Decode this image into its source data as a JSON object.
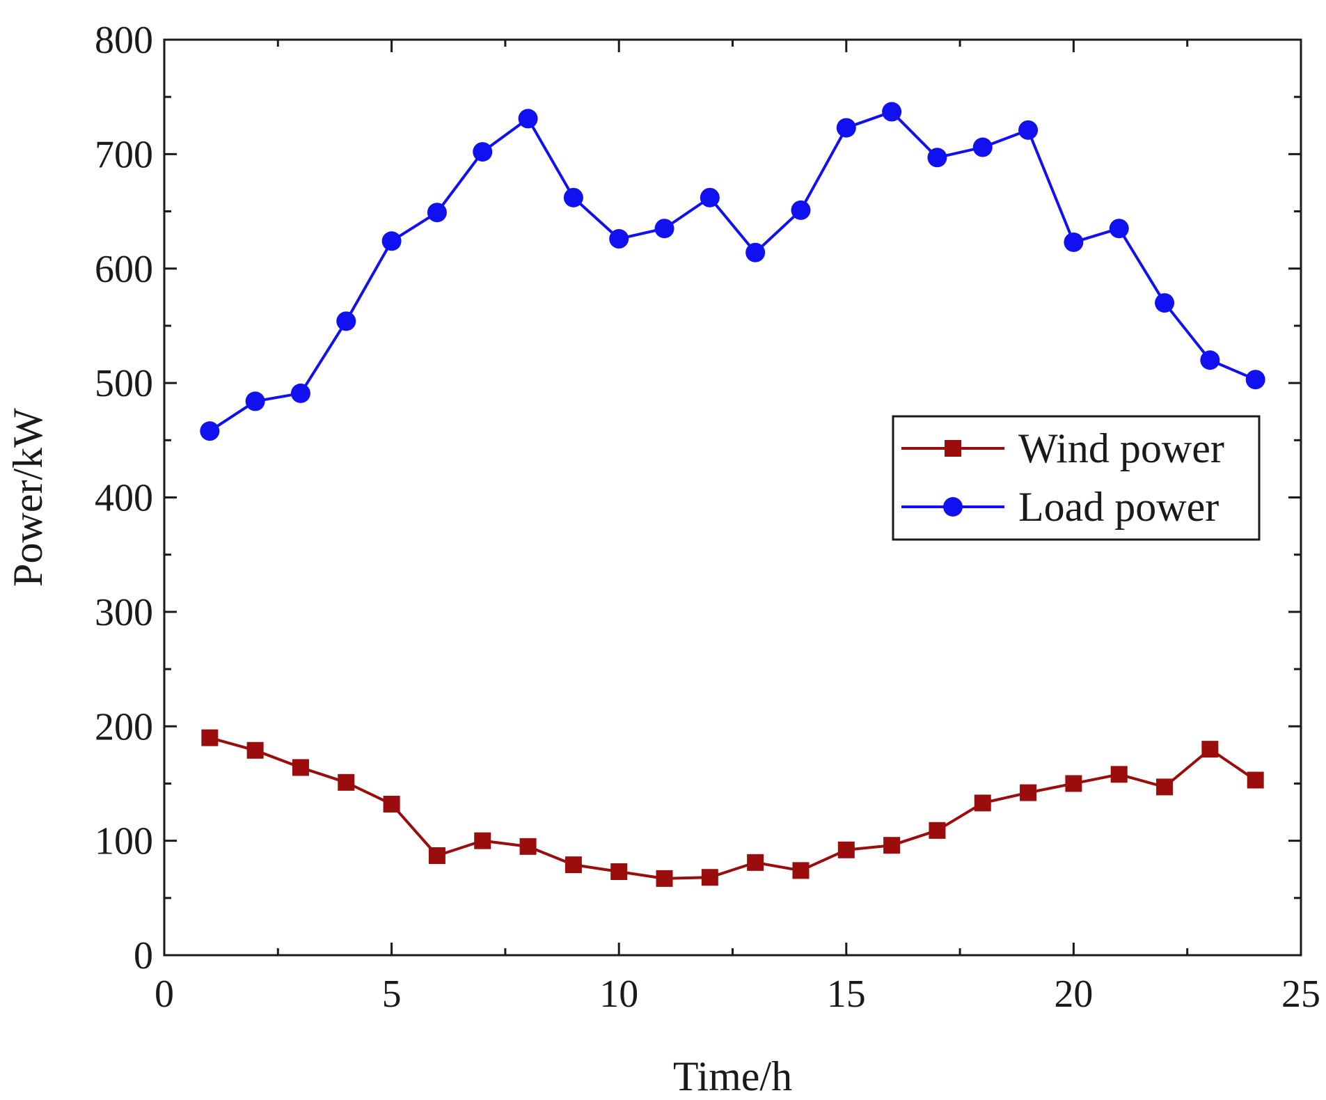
{
  "chart_data": {
    "type": "line",
    "title": "",
    "xlabel": "Time/h",
    "ylabel": "Power/kW",
    "xlim": [
      0,
      25
    ],
    "ylim": [
      0,
      800
    ],
    "xticks": [
      0,
      5,
      10,
      15,
      20,
      25
    ],
    "yticks": [
      0,
      100,
      200,
      300,
      400,
      500,
      600,
      700,
      800
    ],
    "grid": false,
    "legend_position": "right",
    "x": [
      1,
      2,
      3,
      4,
      5,
      6,
      7,
      8,
      9,
      10,
      11,
      12,
      13,
      14,
      15,
      16,
      17,
      18,
      19,
      20,
      21,
      22,
      23,
      24
    ],
    "series": [
      {
        "name": "Wind power",
        "marker": "square",
        "color": "#9b0d0d",
        "values": [
          190,
          179,
          164,
          151,
          132,
          87,
          100,
          95,
          79,
          73,
          67,
          68,
          81,
          74,
          92,
          96,
          109,
          133,
          142,
          150,
          158,
          147,
          180,
          153
        ]
      },
      {
        "name": "Load power",
        "marker": "circle",
        "color": "#1010f0",
        "values": [
          458,
          484,
          491,
          554,
          624,
          649,
          702,
          731,
          662,
          626,
          635,
          662,
          614,
          651,
          723,
          737,
          697,
          706,
          721,
          623,
          635,
          570,
          520,
          503
        ]
      }
    ]
  }
}
